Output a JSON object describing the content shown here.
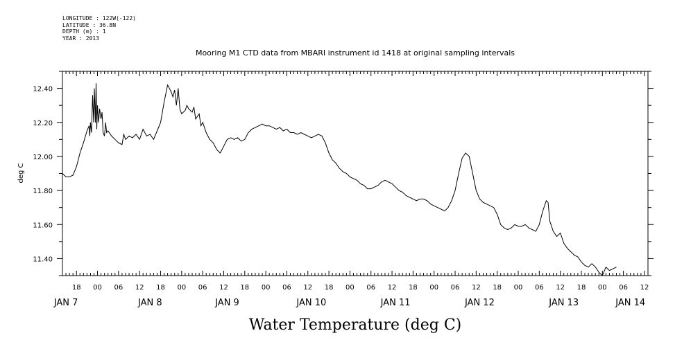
{
  "meta": {
    "longitude": "LONGITUDE : 122W(-122)",
    "latitude": "LATITUDE : 36.8N",
    "depth": "DEPTH (m) : 1",
    "year": "YEAR : 2013"
  },
  "chart_data": {
    "type": "line",
    "title": "Mooring M1 CTD data from MBARI instrument id 1418 at original sampling intervals",
    "xlabel": "Water Temperature (deg C)",
    "ylabel": "deg C",
    "x_units": "hours since JAN 6 14:00",
    "xlim": [
      0,
      167
    ],
    "ylim": [
      11.3,
      12.5
    ],
    "y_ticks": [
      "11.40",
      "11.60",
      "11.80",
      "12.00",
      "12.20",
      "12.40"
    ],
    "x_tick_labels": [
      {
        "t": 4,
        "label": "18"
      },
      {
        "t": 10,
        "label": "00"
      },
      {
        "t": 16,
        "label": "06"
      },
      {
        "t": 22,
        "label": "12"
      },
      {
        "t": 28,
        "label": "18"
      },
      {
        "t": 34,
        "label": "00"
      },
      {
        "t": 40,
        "label": "06"
      },
      {
        "t": 46,
        "label": "12"
      },
      {
        "t": 52,
        "label": "18"
      },
      {
        "t": 58,
        "label": "00"
      },
      {
        "t": 64,
        "label": "06"
      },
      {
        "t": 70,
        "label": "12"
      },
      {
        "t": 76,
        "label": "18"
      },
      {
        "t": 82,
        "label": "00"
      },
      {
        "t": 88,
        "label": "06"
      },
      {
        "t": 94,
        "label": "12"
      },
      {
        "t": 100,
        "label": "18"
      },
      {
        "t": 106,
        "label": "00"
      },
      {
        "t": 112,
        "label": "06"
      },
      {
        "t": 118,
        "label": "12"
      },
      {
        "t": 124,
        "label": "18"
      },
      {
        "t": 130,
        "label": "00"
      },
      {
        "t": 136,
        "label": "06"
      },
      {
        "t": 142,
        "label": "12"
      },
      {
        "t": 148,
        "label": "18"
      },
      {
        "t": 154,
        "label": "00"
      },
      {
        "t": 160,
        "label": "06"
      },
      {
        "t": 166,
        "label": "12"
      }
    ],
    "day_labels": [
      {
        "t": 1,
        "label": "JAN  7"
      },
      {
        "t": 25,
        "label": "JAN  8"
      },
      {
        "t": 47,
        "label": "JAN  9"
      },
      {
        "t": 71,
        "label": "JAN 10"
      },
      {
        "t": 95,
        "label": "JAN 11"
      },
      {
        "t": 119,
        "label": "JAN 12"
      },
      {
        "t": 143,
        "label": "JAN 13"
      },
      {
        "t": 162,
        "label": "JAN 14"
      }
    ],
    "series": [
      {
        "color": "#000000",
        "points": [
          [
            0,
            11.9
          ],
          [
            1,
            11.88
          ],
          [
            2,
            11.88
          ],
          [
            3,
            11.89
          ],
          [
            4,
            11.94
          ],
          [
            5,
            12.02
          ],
          [
            6,
            12.08
          ],
          [
            7,
            12.15
          ],
          [
            7.6,
            12.18
          ],
          [
            7.8,
            12.12
          ],
          [
            8,
            12.2
          ],
          [
            8.3,
            12.14
          ],
          [
            8.6,
            12.36
          ],
          [
            8.9,
            12.2
          ],
          [
            9.1,
            12.4
          ],
          [
            9.4,
            12.2
          ],
          [
            9.6,
            12.43
          ],
          [
            9.8,
            12.16
          ],
          [
            10,
            12.3
          ],
          [
            10.3,
            12.2
          ],
          [
            10.6,
            12.28
          ],
          [
            11,
            12.22
          ],
          [
            11.3,
            12.26
          ],
          [
            11.6,
            12.14
          ],
          [
            12,
            12.12
          ],
          [
            12.3,
            12.2
          ],
          [
            12.6,
            12.14
          ],
          [
            13,
            12.15
          ],
          [
            14,
            12.12
          ],
          [
            15,
            12.1
          ],
          [
            16,
            12.08
          ],
          [
            17,
            12.07
          ],
          [
            17.5,
            12.13
          ],
          [
            18,
            12.1
          ],
          [
            19,
            12.12
          ],
          [
            20,
            12.11
          ],
          [
            21,
            12.13
          ],
          [
            22,
            12.1
          ],
          [
            23,
            12.16
          ],
          [
            24,
            12.12
          ],
          [
            25,
            12.13
          ],
          [
            26,
            12.1
          ],
          [
            27,
            12.15
          ],
          [
            28,
            12.2
          ],
          [
            29,
            12.32
          ],
          [
            30,
            12.42
          ],
          [
            31,
            12.38
          ],
          [
            31.5,
            12.35
          ],
          [
            32,
            12.39
          ],
          [
            32.5,
            12.3
          ],
          [
            33,
            12.4
          ],
          [
            33.5,
            12.28
          ],
          [
            34,
            12.25
          ],
          [
            35,
            12.27
          ],
          [
            35.5,
            12.3
          ],
          [
            36,
            12.28
          ],
          [
            37,
            12.26
          ],
          [
            37.5,
            12.29
          ],
          [
            38,
            12.22
          ],
          [
            39,
            12.25
          ],
          [
            39.5,
            12.18
          ],
          [
            40,
            12.2
          ],
          [
            41,
            12.14
          ],
          [
            42,
            12.1
          ],
          [
            43,
            12.08
          ],
          [
            44,
            12.04
          ],
          [
            45,
            12.02
          ],
          [
            46,
            12.06
          ],
          [
            47,
            12.1
          ],
          [
            48,
            12.11
          ],
          [
            49,
            12.1
          ],
          [
            50,
            12.11
          ],
          [
            51,
            12.09
          ],
          [
            52,
            12.1
          ],
          [
            53,
            12.14
          ],
          [
            54,
            12.16
          ],
          [
            55,
            12.17
          ],
          [
            56,
            12.18
          ],
          [
            57,
            12.19
          ],
          [
            58,
            12.18
          ],
          [
            59,
            12.18
          ],
          [
            60,
            12.17
          ],
          [
            61,
            12.16
          ],
          [
            62,
            12.17
          ],
          [
            63,
            12.15
          ],
          [
            64,
            12.16
          ],
          [
            65,
            12.14
          ],
          [
            66,
            12.14
          ],
          [
            67,
            12.13
          ],
          [
            68,
            12.14
          ],
          [
            69,
            12.13
          ],
          [
            70,
            12.12
          ],
          [
            71,
            12.11
          ],
          [
            72,
            12.12
          ],
          [
            73,
            12.13
          ],
          [
            74,
            12.12
          ],
          [
            75,
            12.08
          ],
          [
            76,
            12.02
          ],
          [
            77,
            11.98
          ],
          [
            78,
            11.96
          ],
          [
            79,
            11.93
          ],
          [
            80,
            11.91
          ],
          [
            81,
            11.9
          ],
          [
            82,
            11.88
          ],
          [
            83,
            11.87
          ],
          [
            84,
            11.86
          ],
          [
            85,
            11.84
          ],
          [
            86,
            11.83
          ],
          [
            87,
            11.81
          ],
          [
            88,
            11.81
          ],
          [
            89,
            11.82
          ],
          [
            90,
            11.83
          ],
          [
            91,
            11.85
          ],
          [
            92,
            11.86
          ],
          [
            93,
            11.85
          ],
          [
            94,
            11.84
          ],
          [
            95,
            11.82
          ],
          [
            96,
            11.8
          ],
          [
            97,
            11.79
          ],
          [
            98,
            11.77
          ],
          [
            99,
            11.76
          ],
          [
            100,
            11.75
          ],
          [
            101,
            11.74
          ],
          [
            102,
            11.75
          ],
          [
            103,
            11.75
          ],
          [
            104,
            11.74
          ],
          [
            105,
            11.72
          ],
          [
            106,
            11.71
          ],
          [
            107,
            11.7
          ],
          [
            108,
            11.69
          ],
          [
            109,
            11.68
          ],
          [
            110,
            11.7
          ],
          [
            111,
            11.74
          ],
          [
            112,
            11.8
          ],
          [
            113,
            11.9
          ],
          [
            114,
            11.99
          ],
          [
            115,
            12.02
          ],
          [
            116,
            12.0
          ],
          [
            117,
            11.9
          ],
          [
            118,
            11.8
          ],
          [
            119,
            11.75
          ],
          [
            120,
            11.73
          ],
          [
            121,
            11.72
          ],
          [
            122,
            11.71
          ],
          [
            123,
            11.7
          ],
          [
            124,
            11.66
          ],
          [
            125,
            11.6
          ],
          [
            126,
            11.58
          ],
          [
            127,
            11.57
          ],
          [
            128,
            11.58
          ],
          [
            129,
            11.6
          ],
          [
            130,
            11.59
          ],
          [
            131,
            11.59
          ],
          [
            132,
            11.6
          ],
          [
            133,
            11.58
          ],
          [
            134,
            11.57
          ],
          [
            135,
            11.56
          ],
          [
            136,
            11.6
          ],
          [
            137,
            11.68
          ],
          [
            138,
            11.74
          ],
          [
            138.5,
            11.73
          ],
          [
            139,
            11.62
          ],
          [
            140,
            11.56
          ],
          [
            141,
            11.53
          ],
          [
            142,
            11.55
          ],
          [
            142.5,
            11.52
          ],
          [
            143,
            11.49
          ],
          [
            144,
            11.46
          ],
          [
            145,
            11.44
          ],
          [
            146,
            11.42
          ],
          [
            147,
            11.41
          ],
          [
            148,
            11.38
          ],
          [
            149,
            11.36
          ],
          [
            150,
            11.35
          ],
          [
            151,
            11.37
          ],
          [
            152,
            11.35
          ],
          [
            153,
            11.32
          ],
          [
            154,
            11.3
          ],
          [
            155,
            11.35
          ],
          [
            156,
            11.33
          ],
          [
            157,
            11.34
          ],
          [
            158,
            11.35
          ]
        ]
      }
    ],
    "grid": false,
    "legend": "none"
  }
}
